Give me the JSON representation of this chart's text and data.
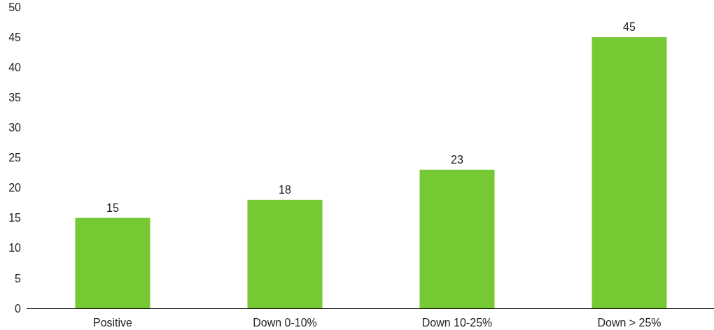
{
  "chart_data": {
    "type": "bar",
    "categories": [
      "Positive",
      "Down 0-10%",
      "Down 10-25%",
      "Down > 25%"
    ],
    "values": [
      15,
      18,
      23,
      45
    ],
    "color": "#76c933",
    "ylim": [
      0,
      50
    ],
    "yticks": [
      0,
      5,
      10,
      15,
      20,
      25,
      30,
      35,
      40,
      45,
      50
    ],
    "data_labels": true
  }
}
